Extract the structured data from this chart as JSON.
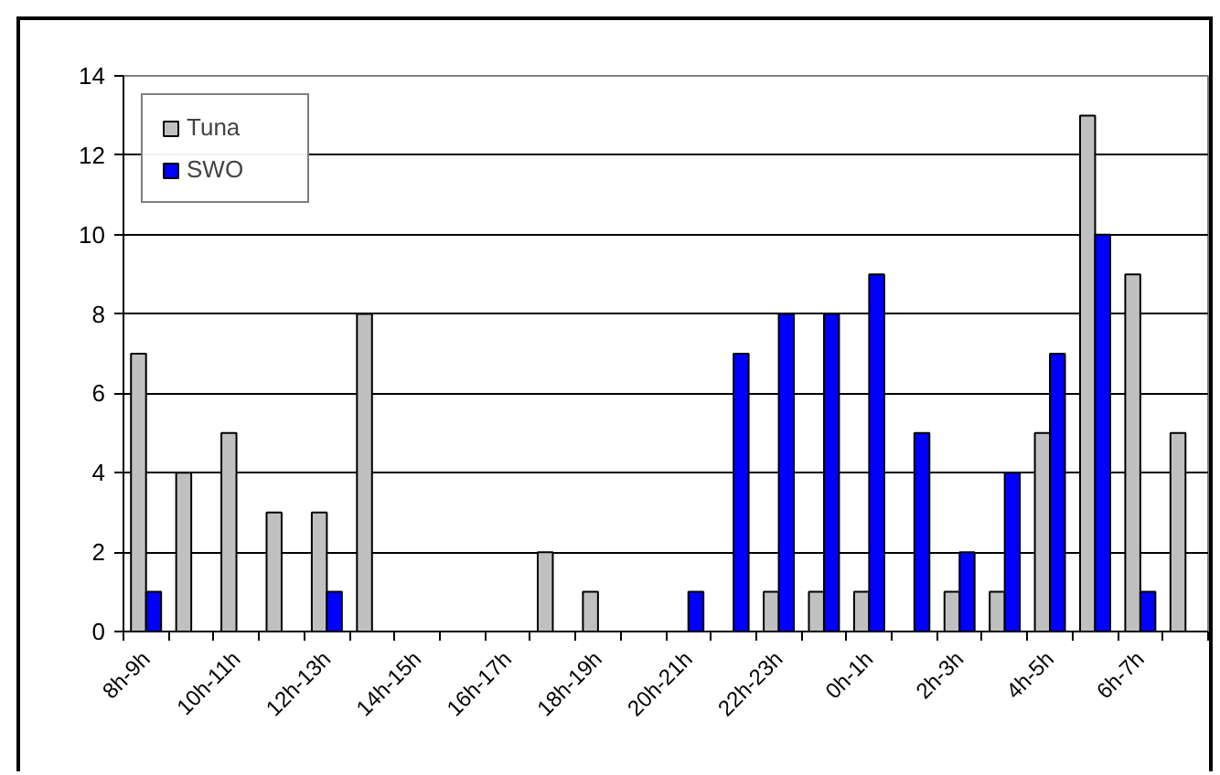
{
  "chart_data": {
    "type": "bar",
    "categories": [
      "8h-9h",
      null,
      "10h-11h",
      null,
      "12h-13h",
      null,
      "14h-15h",
      null,
      "16h-17h",
      null,
      "18h-19h",
      null,
      "20h-21h",
      null,
      "22h-23h",
      null,
      "0h-1h",
      null,
      "2h-3h",
      null,
      "4h-5h",
      null,
      "6h-7h",
      null
    ],
    "series": [
      {
        "name": "Tuna",
        "color": "#c0c0c0",
        "values": [
          7,
          4,
          5,
          3,
          3,
          8,
          0,
          0,
          0,
          2,
          1,
          0,
          0,
          0,
          1,
          1,
          1,
          0,
          1,
          1,
          5,
          13,
          9,
          5
        ]
      },
      {
        "name": "SWO",
        "color": "#0000ff",
        "values": [
          1,
          0,
          0,
          0,
          1,
          0,
          0,
          0,
          0,
          0,
          0,
          0,
          1,
          7,
          8,
          8,
          9,
          5,
          2,
          4,
          7,
          10,
          1,
          0
        ]
      }
    ],
    "ylim": [
      0,
      14
    ],
    "yticks": [
      0,
      2,
      4,
      6,
      8,
      10,
      12,
      14
    ],
    "grid": "y",
    "legend": "top left"
  }
}
